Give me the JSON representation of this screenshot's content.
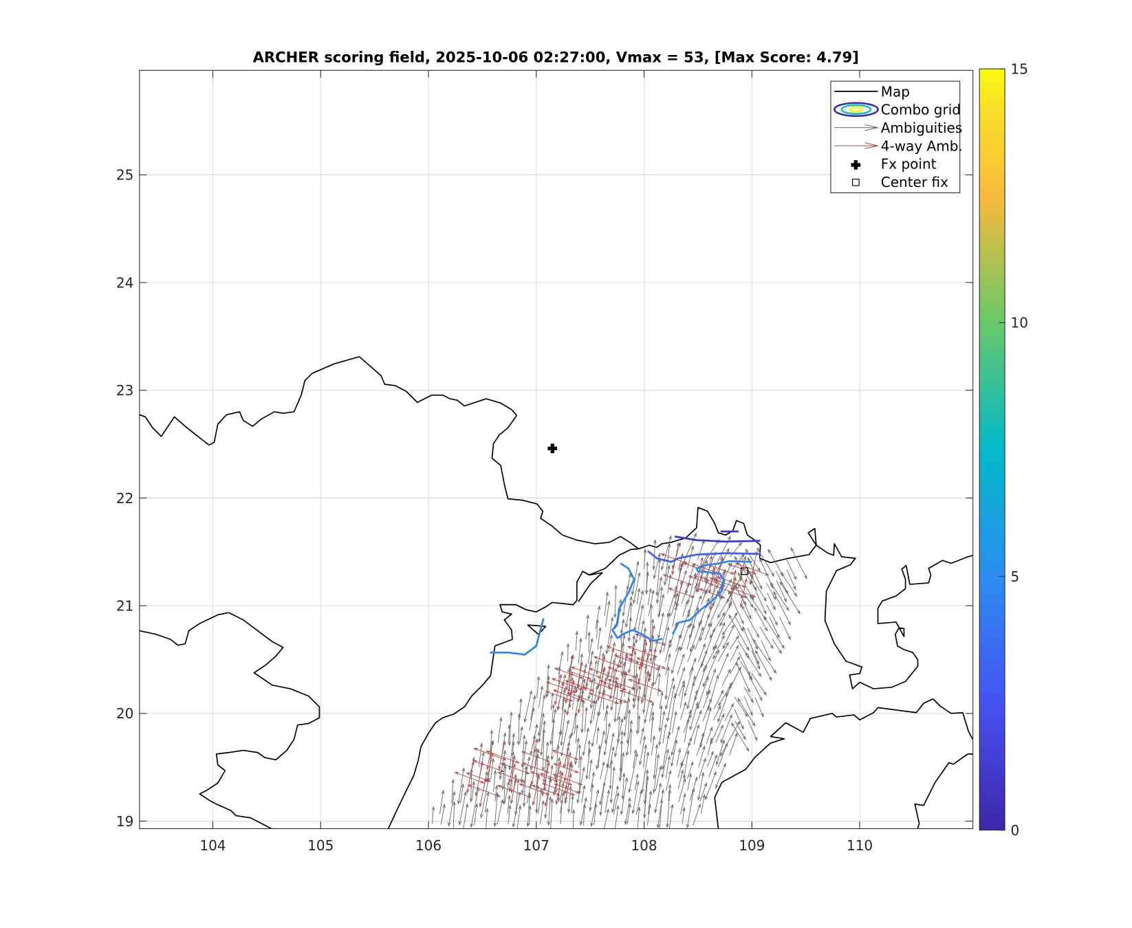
{
  "chart_data": {
    "type": "scatter",
    "title": "ARCHER scoring field, 2025-10-06 02:27:00, Vmax = 53, [Max Score: 4.79]",
    "xlabel": "",
    "ylabel": "",
    "xlim": [
      103.32,
      111.05
    ],
    "ylim": [
      18.93,
      25.97
    ],
    "x_ticks": [
      "104",
      "105",
      "106",
      "107",
      "108",
      "109",
      "110"
    ],
    "y_ticks": [
      "19",
      "20",
      "21",
      "22",
      "23",
      "24",
      "25"
    ],
    "grid": true,
    "colorbar": {
      "min": 0,
      "max": 15,
      "ticks": [
        "0",
        "5",
        "10",
        "15"
      ]
    },
    "legend": {
      "placement": "top-right",
      "entries": [
        "Map",
        "Combo grid",
        "Ambiguities",
        "4-way Amb.",
        "Fx point",
        "Center fix"
      ]
    },
    "fx_point": {
      "lon": 107.15,
      "lat": 22.46
    },
    "center_fix": {
      "lon": 108.93,
      "lat": 21.32
    },
    "max_score": 4.79,
    "contour_levels": [
      2.5,
      3.5,
      4.5
    ],
    "colors": {
      "map": "#000000",
      "ambiguities": "#6e6e6e",
      "four_way": "#b5494b",
      "contour_low": "#3b3bd4",
      "contour_mid": "#3f5ff2",
      "contour_high": "#2f86f0"
    }
  }
}
